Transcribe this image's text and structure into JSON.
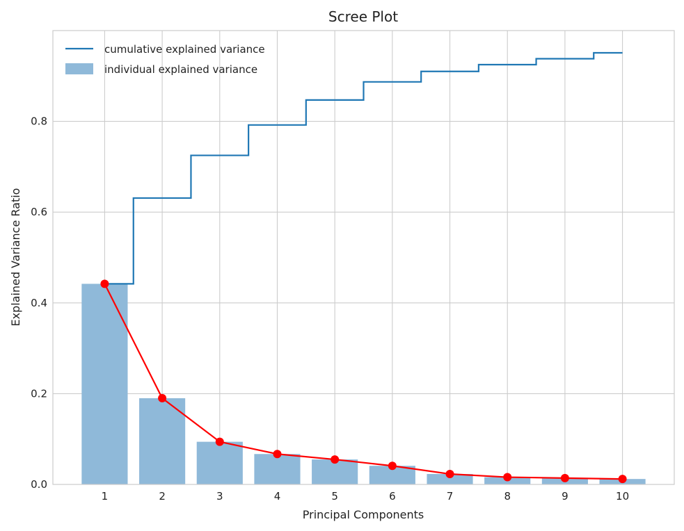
{
  "chart_data": {
    "type": "bar",
    "title": "Scree Plot",
    "xlabel": "Principal Components",
    "ylabel": "Explained Variance Ratio",
    "categories": [
      "1",
      "2",
      "3",
      "4",
      "5",
      "6",
      "7",
      "8",
      "9",
      "10"
    ],
    "x": [
      1,
      2,
      3,
      4,
      5,
      6,
      7,
      8,
      9,
      10
    ],
    "xlim": [
      0.1,
      10.9
    ],
    "ylim": [
      0,
      1.0
    ],
    "yticks": [
      0.0,
      0.2,
      0.4,
      0.6,
      0.8
    ],
    "ytick_labels": [
      "0.0",
      "0.2",
      "0.4",
      "0.6",
      "0.8"
    ],
    "grid": true,
    "legend_position": "top-left",
    "series": [
      {
        "name": "cumulative explained variance",
        "type": "step",
        "color": "#1f77b4",
        "values": [
          0.442,
          0.631,
          0.725,
          0.792,
          0.847,
          0.887,
          0.91,
          0.925,
          0.938,
          0.951
        ]
      },
      {
        "name": "individual explained variance",
        "type": "bar",
        "color": "#8fb9d9",
        "values": [
          0.442,
          0.19,
          0.094,
          0.067,
          0.055,
          0.041,
          0.023,
          0.016,
          0.014,
          0.012
        ]
      },
      {
        "type": "line-marker",
        "color": "#ff0000",
        "values": [
          0.442,
          0.19,
          0.094,
          0.067,
          0.055,
          0.041,
          0.023,
          0.016,
          0.014,
          0.012
        ]
      }
    ]
  }
}
